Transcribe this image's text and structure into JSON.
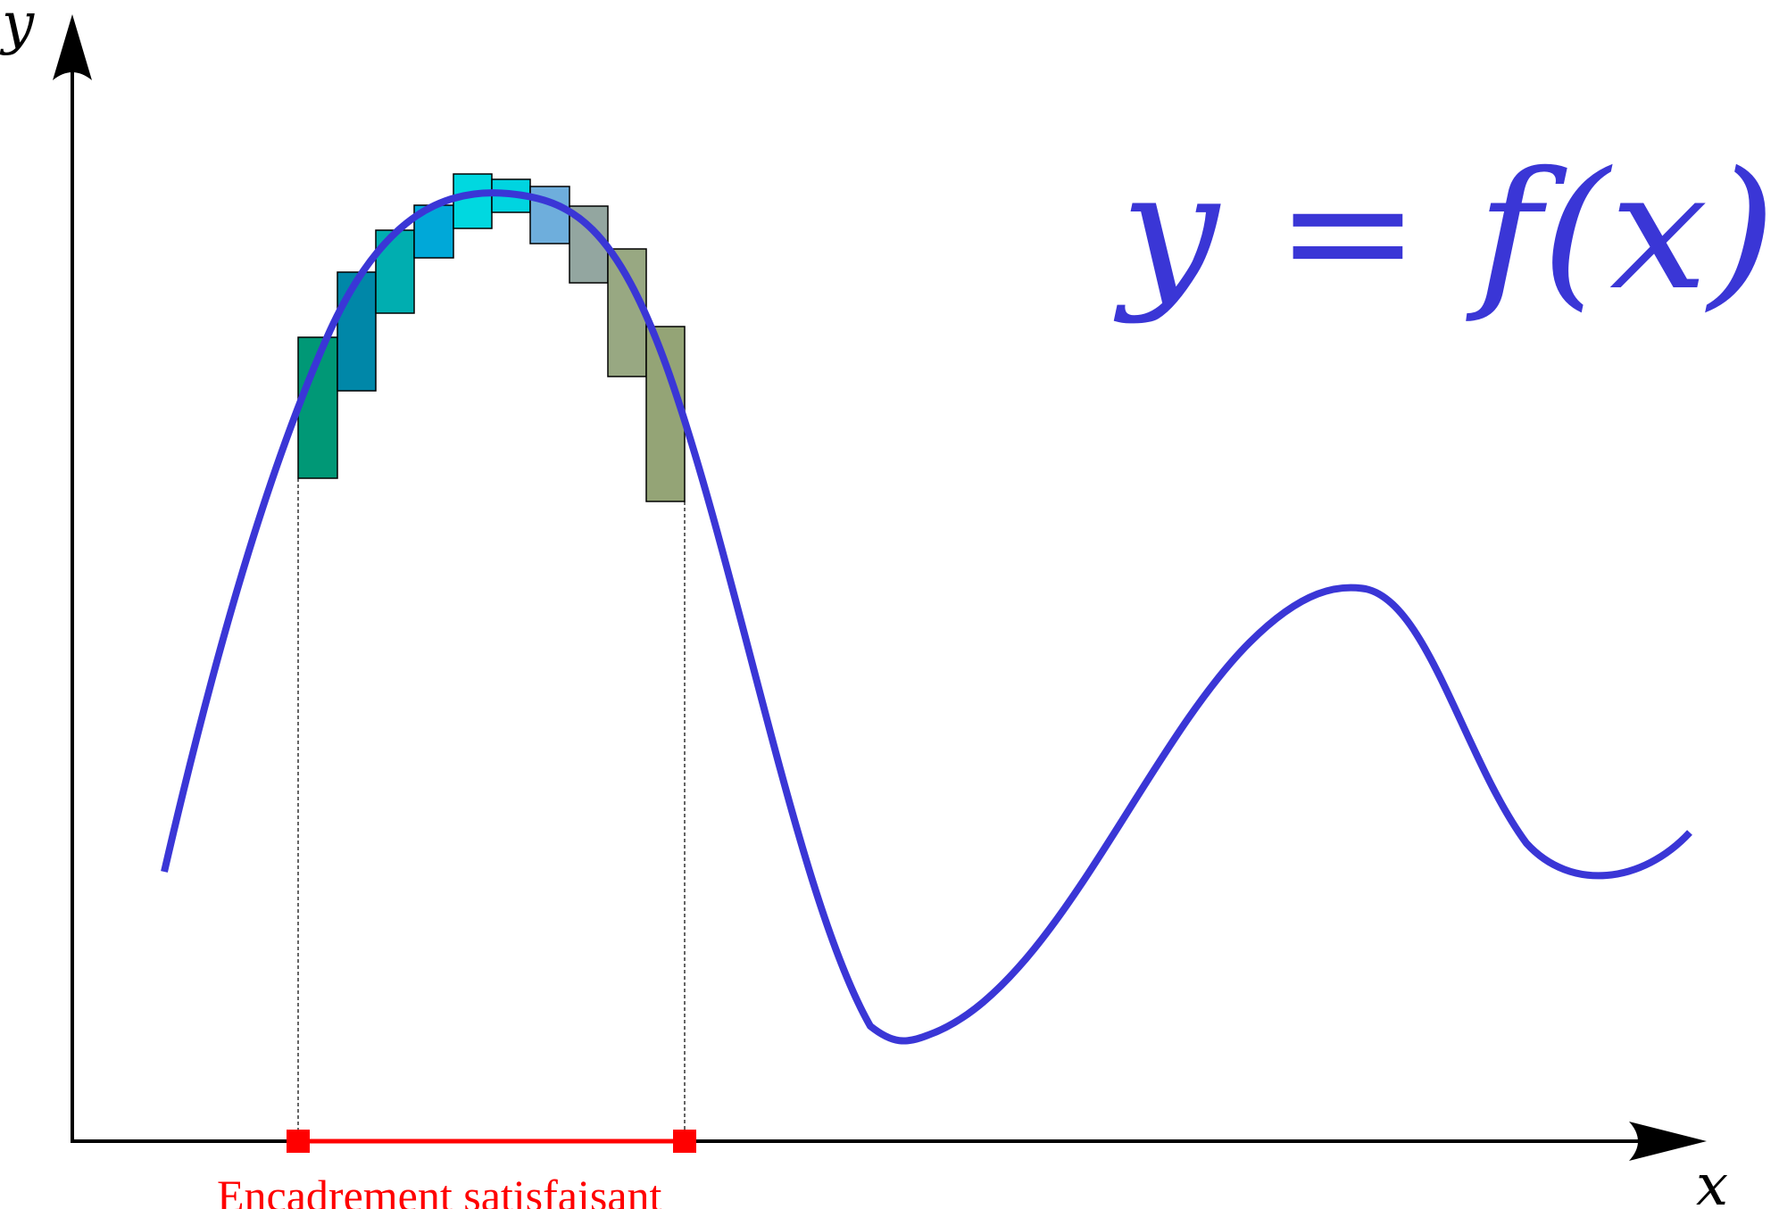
{
  "axes": {
    "x_label": "x",
    "y_label": "y",
    "color": "#000000"
  },
  "function_label": {
    "text": "y = f(x)",
    "color": "#3a36d6"
  },
  "curve": {
    "color": "#3a36d6"
  },
  "interval": {
    "label": "Encadrement satisfaisant",
    "color": "#ff0000"
  },
  "boxes": {
    "colors": [
      "#009876",
      "#0087a8",
      "#00aeb0",
      "#00a8d8",
      "#00d8e0",
      "#00d4e0",
      "#6eaedc",
      "#93a6a0",
      "#98a882",
      "#94a476"
    ]
  }
}
